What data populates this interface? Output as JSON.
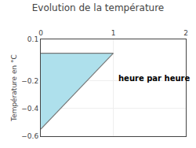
{
  "chart_data": {
    "type": "area",
    "title": "Evolution de la température",
    "ylabel": "Température en °C",
    "series": [
      {
        "type": "area",
        "x": [
          0,
          0,
          1
        ],
        "values": [
          -0.55,
          0.0,
          0.0
        ],
        "color": "#aee0ec"
      },
      {
        "type": "line",
        "x": [
          0,
          1
        ],
        "values": [
          -0.55,
          0.0
        ],
        "color": "#777777"
      },
      {
        "type": "line",
        "x": [
          0,
          1
        ],
        "values": [
          0.0,
          0.0
        ],
        "color": "#777777"
      }
    ],
    "annotations": [
      {
        "text": "heure par heure",
        "x": 1.05,
        "y": -0.18
      }
    ],
    "xlim": [
      0,
      2.0
    ],
    "ylim": [
      -0.6,
      0.1
    ],
    "xticks": [
      0,
      1,
      2
    ],
    "yticks": [
      0.1,
      -0.2,
      -0.4,
      -0.6
    ],
    "grid": true
  }
}
